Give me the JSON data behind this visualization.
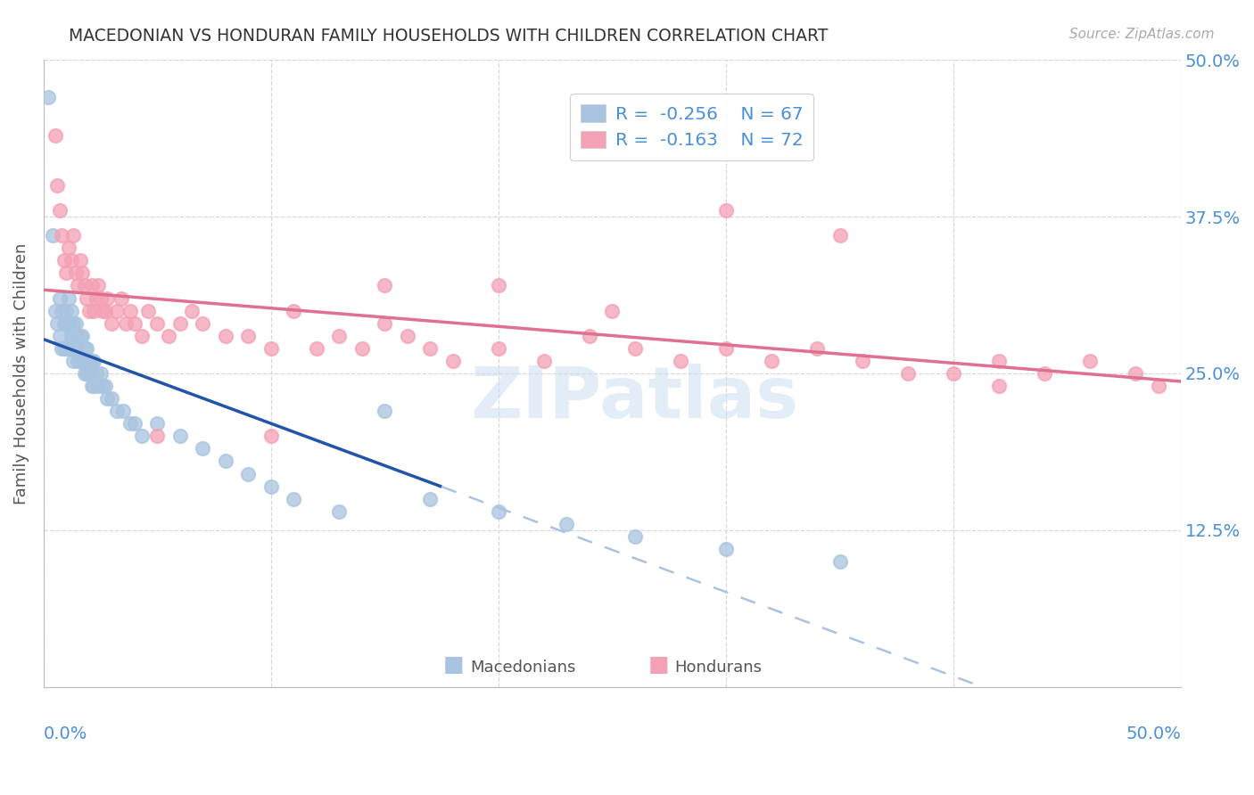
{
  "title": "MACEDONIAN VS HONDURAN FAMILY HOUSEHOLDS WITH CHILDREN CORRELATION CHART",
  "source": "Source: ZipAtlas.com",
  "ylabel": "Family Households with Children",
  "xlim": [
    0.0,
    0.5
  ],
  "ylim": [
    0.0,
    0.5
  ],
  "yticks": [
    0.0,
    0.125,
    0.25,
    0.375,
    0.5
  ],
  "ytick_labels": [
    "",
    "12.5%",
    "25.0%",
    "37.5%",
    "50.0%"
  ],
  "macedonian_color": "#a8c4e0",
  "honduran_color": "#f4a0b5",
  "macedonian_R": -0.256,
  "macedonian_N": 67,
  "honduran_R": -0.163,
  "honduran_N": 72,
  "watermark_text": "ZIPatlas",
  "background_color": "#ffffff",
  "grid_color": "#d8d8d8",
  "tick_label_color": "#4a90d9",
  "title_color": "#333333",
  "macedonian_line_color": "#2255aa",
  "honduran_line_color": "#e07090",
  "dashed_line_color": "#aac4e0",
  "mac_scatter_x": [
    0.002,
    0.004,
    0.005,
    0.006,
    0.007,
    0.007,
    0.008,
    0.008,
    0.009,
    0.009,
    0.01,
    0.01,
    0.01,
    0.011,
    0.011,
    0.011,
    0.012,
    0.012,
    0.012,
    0.013,
    0.013,
    0.013,
    0.014,
    0.014,
    0.015,
    0.015,
    0.016,
    0.016,
    0.017,
    0.017,
    0.018,
    0.018,
    0.019,
    0.019,
    0.02,
    0.02,
    0.021,
    0.021,
    0.022,
    0.022,
    0.023,
    0.024,
    0.025,
    0.026,
    0.027,
    0.028,
    0.03,
    0.032,
    0.035,
    0.038,
    0.04,
    0.043,
    0.05,
    0.06,
    0.07,
    0.08,
    0.09,
    0.1,
    0.11,
    0.13,
    0.15,
    0.17,
    0.2,
    0.23,
    0.26,
    0.3,
    0.35
  ],
  "mac_scatter_y": [
    0.47,
    0.36,
    0.3,
    0.29,
    0.31,
    0.28,
    0.3,
    0.27,
    0.29,
    0.27,
    0.3,
    0.29,
    0.27,
    0.31,
    0.29,
    0.27,
    0.3,
    0.28,
    0.27,
    0.29,
    0.28,
    0.26,
    0.29,
    0.27,
    0.28,
    0.26,
    0.28,
    0.26,
    0.28,
    0.26,
    0.27,
    0.25,
    0.27,
    0.25,
    0.26,
    0.25,
    0.26,
    0.24,
    0.26,
    0.24,
    0.25,
    0.24,
    0.25,
    0.24,
    0.24,
    0.23,
    0.23,
    0.22,
    0.22,
    0.21,
    0.21,
    0.2,
    0.21,
    0.2,
    0.19,
    0.18,
    0.17,
    0.16,
    0.15,
    0.14,
    0.22,
    0.15,
    0.14,
    0.13,
    0.12,
    0.11,
    0.1
  ],
  "hon_scatter_x": [
    0.005,
    0.006,
    0.007,
    0.008,
    0.009,
    0.01,
    0.011,
    0.012,
    0.013,
    0.014,
    0.015,
    0.016,
    0.017,
    0.018,
    0.019,
    0.02,
    0.021,
    0.022,
    0.023,
    0.024,
    0.025,
    0.026,
    0.027,
    0.028,
    0.03,
    0.032,
    0.034,
    0.036,
    0.038,
    0.04,
    0.043,
    0.046,
    0.05,
    0.055,
    0.06,
    0.065,
    0.07,
    0.08,
    0.09,
    0.1,
    0.11,
    0.12,
    0.13,
    0.14,
    0.15,
    0.16,
    0.17,
    0.18,
    0.2,
    0.22,
    0.24,
    0.26,
    0.28,
    0.3,
    0.32,
    0.34,
    0.36,
    0.38,
    0.4,
    0.42,
    0.44,
    0.46,
    0.48,
    0.49,
    0.3,
    0.35,
    0.25,
    0.2,
    0.15,
    0.42,
    0.1,
    0.05
  ],
  "hon_scatter_y": [
    0.44,
    0.4,
    0.38,
    0.36,
    0.34,
    0.33,
    0.35,
    0.34,
    0.36,
    0.33,
    0.32,
    0.34,
    0.33,
    0.32,
    0.31,
    0.3,
    0.32,
    0.3,
    0.31,
    0.32,
    0.31,
    0.3,
    0.3,
    0.31,
    0.29,
    0.3,
    0.31,
    0.29,
    0.3,
    0.29,
    0.28,
    0.3,
    0.29,
    0.28,
    0.29,
    0.3,
    0.29,
    0.28,
    0.28,
    0.27,
    0.3,
    0.27,
    0.28,
    0.27,
    0.29,
    0.28,
    0.27,
    0.26,
    0.27,
    0.26,
    0.28,
    0.27,
    0.26,
    0.27,
    0.26,
    0.27,
    0.26,
    0.25,
    0.25,
    0.26,
    0.25,
    0.26,
    0.25,
    0.24,
    0.38,
    0.36,
    0.3,
    0.32,
    0.32,
    0.24,
    0.2,
    0.2
  ],
  "mac_line_x_solid_end": 0.175,
  "hon_line_full": true
}
